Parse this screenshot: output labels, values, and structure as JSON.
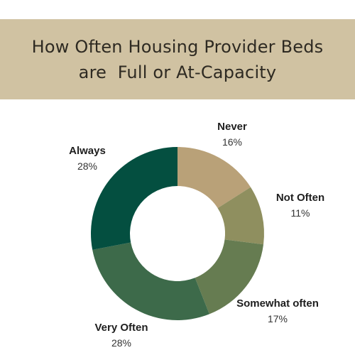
{
  "chart_data": {
    "type": "pie",
    "style": "donut",
    "title_lines": [
      "How Often Housing Provider Beds",
      "are  Full or At-Capacity"
    ],
    "slices": [
      {
        "label": "Never",
        "value": 16,
        "display": "16%",
        "color": "#b9a178"
      },
      {
        "label": "Not Often",
        "value": 11,
        "display": "11%",
        "color": "#8f8f5f"
      },
      {
        "label": "Somewhat often",
        "value": 17,
        "display": "17%",
        "color": "#667c51"
      },
      {
        "label": "Very Often",
        "value": 28,
        "display": "28%",
        "color": "#3d6a4a"
      },
      {
        "label": "Always",
        "value": 28,
        "display": "28%",
        "color": "#044f40"
      }
    ],
    "start_angle_deg": 0,
    "direction": "clockwise",
    "legend": "none"
  },
  "colors": {
    "banner_background": "#d0c2a2",
    "title_text": "#2e2a22"
  }
}
